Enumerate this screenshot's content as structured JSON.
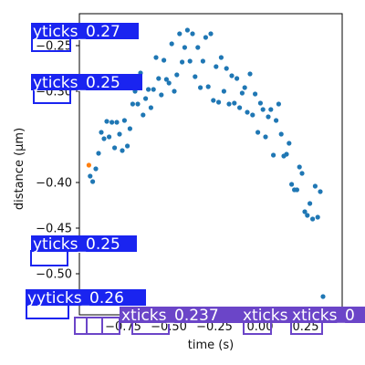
{
  "chart_data": {
    "type": "scatter",
    "xlabel": "time (s)",
    "ylabel": "distance (µm)",
    "xlim": [
      -0.99,
      0.45
    ],
    "ylim": [
      -0.545,
      -0.215
    ],
    "grid": false,
    "x_ticks": [
      {
        "value": -0.75,
        "label": "−0.75"
      },
      {
        "value": -0.5,
        "label": "−0.50"
      },
      {
        "value": -0.25,
        "label": "−0.25"
      },
      {
        "value": 0.0,
        "label": "0.00"
      },
      {
        "value": 0.25,
        "label": "0.25"
      }
    ],
    "y_ticks": [
      {
        "value": -0.25,
        "label": "−0.25"
      },
      {
        "value": -0.3,
        "label": "−0.30"
      },
      {
        "value": -0.4,
        "label": "−0.40"
      },
      {
        "value": -0.45,
        "label": "−0.45"
      },
      {
        "value": -0.5,
        "label": "−0.50"
      }
    ],
    "series": [
      {
        "color": "#1f77b4",
        "points": [
          [
            -0.931,
            -0.393
          ],
          [
            -0.917,
            -0.399
          ],
          [
            -0.9,
            -0.385
          ],
          [
            -0.885,
            -0.368
          ],
          [
            -0.87,
            -0.345
          ],
          [
            -0.855,
            -0.352
          ],
          [
            -0.84,
            -0.333
          ],
          [
            -0.827,
            -0.35
          ],
          [
            -0.812,
            -0.334
          ],
          [
            -0.797,
            -0.362
          ],
          [
            -0.785,
            -0.334
          ],
          [
            -0.77,
            -0.347
          ],
          [
            -0.755,
            -0.365
          ],
          [
            -0.743,
            -0.332
          ],
          [
            -0.727,
            -0.36
          ],
          [
            -0.713,
            -0.341
          ],
          [
            -0.698,
            -0.314
          ],
          [
            -0.685,
            -0.3
          ],
          [
            -0.67,
            -0.314
          ],
          [
            -0.655,
            -0.28
          ],
          [
            -0.641,
            -0.326
          ],
          [
            -0.627,
            -0.308
          ],
          [
            -0.612,
            -0.298
          ],
          [
            -0.598,
            -0.318
          ],
          [
            -0.584,
            -0.298
          ],
          [
            -0.57,
            -0.263
          ],
          [
            -0.556,
            -0.286
          ],
          [
            -0.541,
            -0.304
          ],
          [
            -0.527,
            -0.266
          ],
          [
            -0.513,
            -0.287
          ],
          [
            -0.499,
            -0.291
          ],
          [
            -0.484,
            -0.248
          ],
          [
            -0.47,
            -0.3
          ],
          [
            -0.456,
            -0.282
          ],
          [
            -0.441,
            -0.237
          ],
          [
            -0.427,
            -0.268
          ],
          [
            -0.413,
            -0.252
          ],
          [
            -0.398,
            -0.233
          ],
          [
            -0.384,
            -0.267
          ],
          [
            -0.37,
            -0.237
          ],
          [
            -0.356,
            -0.284
          ],
          [
            -0.341,
            -0.252
          ],
          [
            -0.327,
            -0.296
          ],
          [
            -0.313,
            -0.267
          ],
          [
            -0.298,
            -0.241
          ],
          [
            -0.284,
            -0.295
          ],
          [
            -0.27,
            -0.237
          ],
          [
            -0.256,
            -0.31
          ],
          [
            -0.241,
            -0.273
          ],
          [
            -0.227,
            -0.312
          ],
          [
            -0.213,
            -0.263
          ],
          [
            -0.198,
            -0.3
          ],
          [
            -0.184,
            -0.275
          ],
          [
            -0.17,
            -0.314
          ],
          [
            -0.155,
            -0.283
          ],
          [
            -0.141,
            -0.313
          ],
          [
            -0.127,
            -0.286
          ],
          [
            -0.112,
            -0.318
          ],
          [
            -0.098,
            -0.302
          ],
          [
            -0.084,
            -0.296
          ],
          [
            -0.07,
            -0.323
          ],
          [
            -0.055,
            -0.281
          ],
          [
            -0.041,
            -0.326
          ],
          [
            -0.027,
            -0.303
          ],
          [
            -0.012,
            -0.345
          ],
          [
            0.002,
            -0.313
          ],
          [
            0.016,
            -0.32
          ],
          [
            0.03,
            -0.35
          ],
          [
            0.045,
            -0.328
          ],
          [
            0.059,
            -0.32
          ],
          [
            0.073,
            -0.37
          ],
          [
            0.088,
            -0.332
          ],
          [
            0.102,
            -0.314
          ],
          [
            0.116,
            -0.347
          ],
          [
            0.13,
            -0.371
          ],
          [
            0.145,
            -0.369
          ],
          [
            0.159,
            -0.357
          ],
          [
            0.173,
            -0.402
          ],
          [
            0.188,
            -0.408
          ],
          [
            0.202,
            -0.408
          ],
          [
            0.216,
            -0.383
          ],
          [
            0.23,
            -0.39
          ],
          [
            0.245,
            -0.432
          ],
          [
            0.259,
            -0.436
          ],
          [
            0.273,
            -0.423
          ],
          [
            0.288,
            -0.44
          ],
          [
            0.302,
            -0.404
          ],
          [
            0.316,
            -0.438
          ],
          [
            0.33,
            -0.41
          ],
          [
            0.345,
            -0.525
          ]
        ]
      },
      {
        "color": "#ff7f0e",
        "points": [
          [
            -0.938,
            -0.381
          ]
        ]
      }
    ],
    "annotations": [
      {
        "text": "yticks_0.27",
        "kind": "ytick"
      },
      {
        "text": "yticks_0.25",
        "kind": "ytick"
      },
      {
        "text": "yticks_0.25",
        "kind": "ytick"
      },
      {
        "text": "yyticks_0.26",
        "kind": "ytick"
      },
      {
        "text": "xticks_0.237",
        "kind": "xtick"
      },
      {
        "text": "xticks",
        "kind": "xtick"
      },
      {
        "text": "xticks_0",
        "kind": "xtick"
      }
    ],
    "colors": {
      "ytick_label_box": "#1a24f0",
      "xtick_label_box": "#6b45c8",
      "series_1": "#1f77b4",
      "series_2": "#ff7f0e"
    }
  }
}
